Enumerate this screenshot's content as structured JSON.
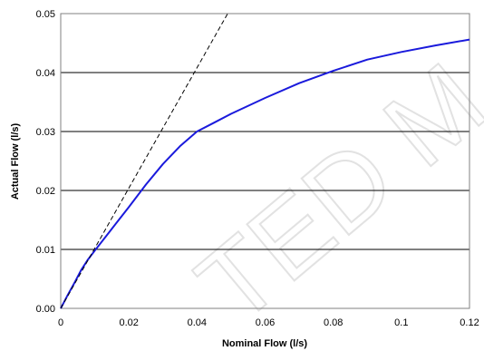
{
  "chart_data": {
    "type": "line",
    "title": "",
    "xlabel": "Nominal Flow (l/s)",
    "ylabel": "Actual Flow (l/s)",
    "xlim": [
      0,
      0.12
    ],
    "ylim": [
      0,
      0.05
    ],
    "x_ticks": [
      "0",
      "0.02",
      "0.04",
      "0.06",
      "0.08",
      "0.1",
      "0.12"
    ],
    "y_ticks": [
      "0.00",
      "0.01",
      "0.02",
      "0.03",
      "0.04",
      "0.05"
    ],
    "grid": "horizontal",
    "legend": "none",
    "series": [
      {
        "style": "solid",
        "color": "#1a1adc",
        "x": [
          0,
          0.002,
          0.004,
          0.006,
          0.008,
          0.01,
          0.015,
          0.02,
          0.025,
          0.03,
          0.035,
          0.04,
          0.045,
          0.05,
          0.06,
          0.07,
          0.08,
          0.09,
          0.1,
          0.11,
          0.12
        ],
        "y": [
          0,
          0.0022,
          0.0043,
          0.0065,
          0.0083,
          0.0098,
          0.0135,
          0.0172,
          0.021,
          0.0245,
          0.0275,
          0.03,
          0.0315,
          0.033,
          0.0357,
          0.0382,
          0.0403,
          0.0422,
          0.0435,
          0.0446,
          0.0456
        ]
      },
      {
        "style": "dashed",
        "color": "#000000",
        "x": [
          0,
          0.049
        ],
        "y": [
          0,
          0.05
        ]
      }
    ]
  },
  "watermark": {
    "text": "TED M",
    "color": "#e2e2e2"
  }
}
